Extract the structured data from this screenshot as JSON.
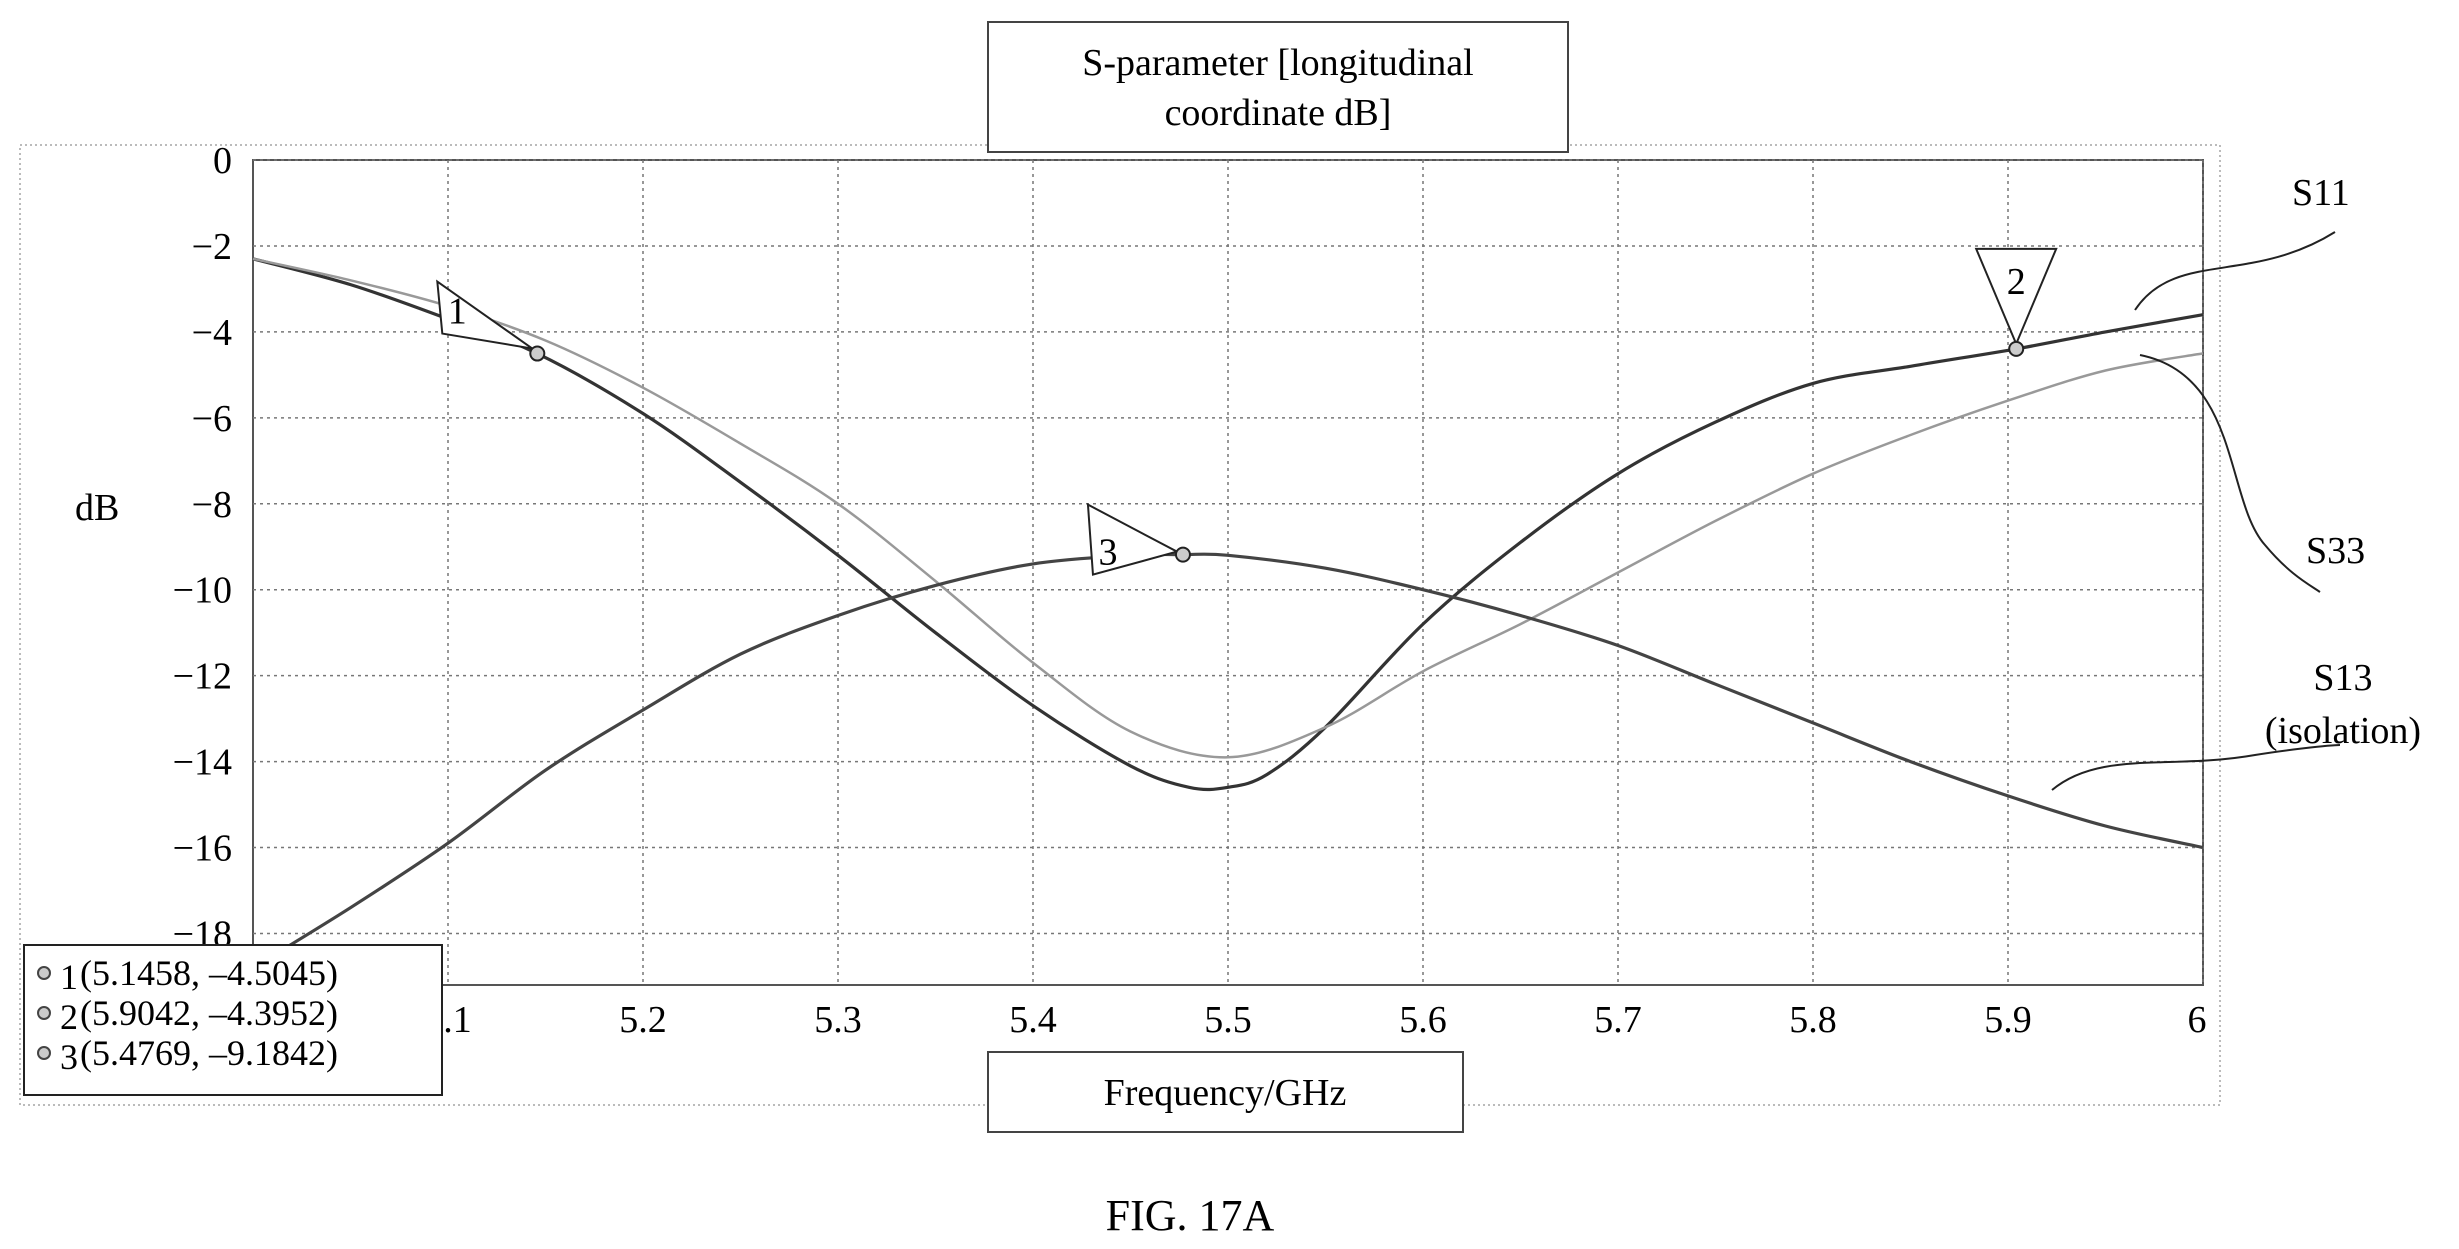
{
  "chart_data": {
    "type": "line",
    "title": "S-parameter [longitudinal coordinate dB]",
    "title_lines": [
      "S-parameter [longitudinal",
      "coordinate dB]"
    ],
    "xlabel": "Frequency/GHz",
    "ylabel": "dB",
    "xlim": [
      5.0,
      6.0
    ],
    "ylim": [
      -19.2,
      0
    ],
    "xticks": [
      5.1,
      5.2,
      5.3,
      5.4,
      5.5,
      5.6,
      5.7,
      5.8,
      5.9,
      6.0
    ],
    "xtick_labels": [
      "5.1",
      "5.2",
      "5.3",
      "5.4",
      "5.5",
      "5.6",
      "5.7",
      "5.8",
      "5.9",
      "6"
    ],
    "yticks": [
      0,
      -2,
      -4,
      -6,
      -8,
      -10,
      -12,
      -14,
      -16,
      -18
    ],
    "ytick_labels": [
      "0",
      "−2",
      "−4",
      "−6",
      "−8",
      "−10",
      "−12",
      "−14",
      "−16",
      "−18"
    ],
    "grid": true,
    "series": [
      {
        "name": "S11",
        "color": "#333333",
        "x": [
          5.0,
          5.05,
          5.1,
          5.1458,
          5.2,
          5.25,
          5.3,
          5.35,
          5.4,
          5.45,
          5.48,
          5.5,
          5.52,
          5.55,
          5.6,
          5.65,
          5.7,
          5.75,
          5.8,
          5.85,
          5.9042,
          5.95,
          6.0
        ],
        "y": [
          -2.3,
          -2.9,
          -3.7,
          -4.5045,
          -5.9,
          -7.5,
          -9.2,
          -11.0,
          -12.7,
          -14.1,
          -14.6,
          -14.6,
          -14.3,
          -13.2,
          -10.8,
          -8.9,
          -7.3,
          -6.1,
          -5.2,
          -4.8,
          -4.3952,
          -4.0,
          -3.6
        ]
      },
      {
        "name": "S33",
        "color": "#999999",
        "x": [
          5.0,
          5.05,
          5.1,
          5.15,
          5.2,
          5.25,
          5.3,
          5.35,
          5.4,
          5.45,
          5.5,
          5.55,
          5.6,
          5.65,
          5.7,
          5.75,
          5.8,
          5.85,
          5.9,
          5.95,
          6.0
        ],
        "y": [
          -2.3,
          -2.8,
          -3.4,
          -4.2,
          -5.3,
          -6.6,
          -8.0,
          -9.8,
          -11.7,
          -13.3,
          -13.9,
          -13.2,
          -11.9,
          -10.8,
          -9.6,
          -8.4,
          -7.3,
          -6.4,
          -5.6,
          -4.9,
          -4.5
        ]
      },
      {
        "name": "S13 (isolation)",
        "color": "#444444",
        "x": [
          5.0,
          5.05,
          5.1,
          5.15,
          5.2,
          5.25,
          5.3,
          5.35,
          5.4,
          5.45,
          5.4769,
          5.5,
          5.55,
          5.6,
          5.65,
          5.7,
          5.75,
          5.8,
          5.85,
          5.9,
          5.95,
          6.0
        ],
        "y": [
          -18.8,
          -17.4,
          -15.9,
          -14.2,
          -12.8,
          -11.5,
          -10.6,
          -9.9,
          -9.4,
          -9.2,
          -9.1842,
          -9.2,
          -9.5,
          -10.0,
          -10.6,
          -11.3,
          -12.2,
          -13.1,
          -14.0,
          -14.8,
          -15.5,
          -16.0
        ]
      }
    ],
    "markers": [
      {
        "id": "1",
        "x": 5.1458,
        "y": -4.5045,
        "text": "(5.1458, –4.5045)"
      },
      {
        "id": "2",
        "x": 5.9042,
        "y": -4.3952,
        "text": "(5.9042, –4.3952)"
      },
      {
        "id": "3",
        "x": 5.4769,
        "y": -9.1842,
        "text": "(5.4769, –9.1842)"
      }
    ],
    "series_labels": {
      "s11": "S11",
      "s33": "S33",
      "s13_line1": "S13",
      "s13_line2": "(isolation)"
    },
    "caption": "FIG. 17A"
  }
}
